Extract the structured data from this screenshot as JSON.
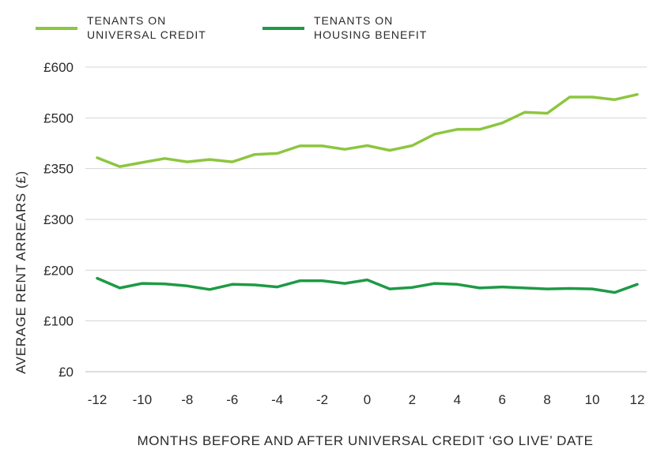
{
  "chart_data": {
    "type": "line",
    "title": "",
    "xlabel": "MONTHS BEFORE AND AFTER UNIVERSAL CREDIT ‘GO LIVE’ DATE",
    "ylabel": "AVERAGE RENT ARREARS (£)",
    "x": [
      -12,
      -11,
      -10,
      -9,
      -8,
      -7,
      -6,
      -5,
      -4,
      -3,
      -2,
      -1,
      0,
      1,
      2,
      3,
      4,
      5,
      6,
      7,
      8,
      9,
      10,
      11,
      12
    ],
    "x_ticks": [
      "-12",
      "-10",
      "-8",
      "-6",
      "-4",
      "-2",
      "0",
      "2",
      "4",
      "6",
      "8",
      "10",
      "12"
    ],
    "x_tick_values": [
      -12,
      -10,
      -8,
      -6,
      -4,
      -2,
      0,
      2,
      4,
      6,
      8,
      10,
      12
    ],
    "y_ticks": [
      "£0",
      "£100",
      "£200",
      "£300",
      "£350",
      "£500",
      "£600"
    ],
    "xlim": [
      -12,
      12
    ],
    "ylim": [
      0,
      600
    ],
    "grid": true,
    "legend_position": "top-left",
    "series": [
      {
        "name": "TENANTS ON UNIVERSAL CREDIT",
        "legend_lines": [
          "TENANTS ON",
          "UNIVERSAL CREDIT"
        ],
        "color": "#8cc63f",
        "values": [
          382,
          356,
          368,
          380,
          370,
          377,
          370,
          392,
          395,
          417,
          417,
          407,
          418,
          404,
          418,
          452,
          466,
          466,
          485,
          511,
          509,
          541,
          541,
          536,
          546
        ]
      },
      {
        "name": "TENANTS ON HOUSING BENEFIT",
        "legend_lines": [
          "TENANTS ON",
          "HOUSING BENEFIT"
        ],
        "color": "#1e9a45",
        "values": [
          184,
          165,
          174,
          173,
          169,
          162,
          172,
          171,
          167,
          179,
          179,
          174,
          181,
          163,
          166,
          174,
          172,
          165,
          167,
          165,
          163,
          164,
          163,
          156,
          172
        ]
      }
    ]
  }
}
